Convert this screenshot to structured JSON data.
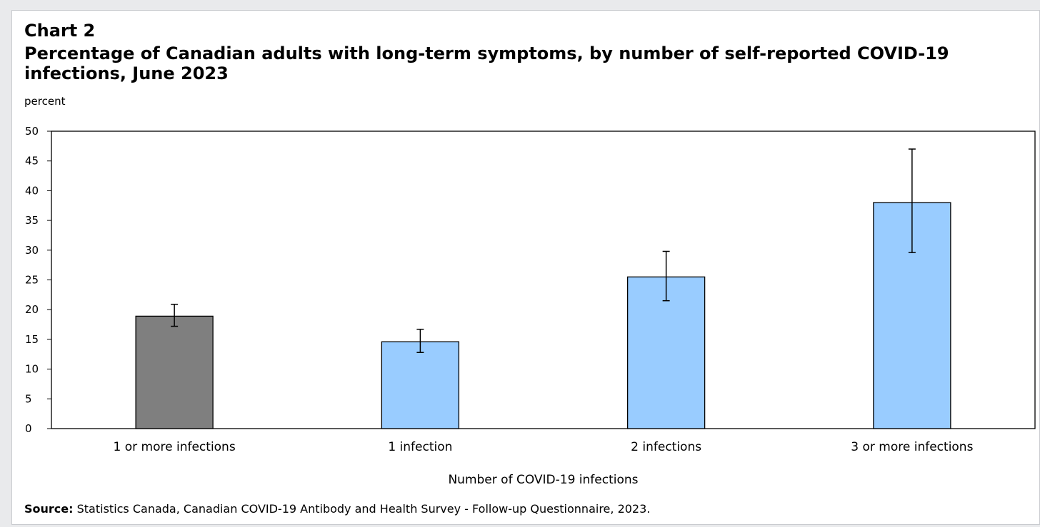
{
  "chart_label": "Chart 2",
  "title": "Percentage of Canadian adults with long-term symptoms, by number of self-reported COVID-19 infections, June 2023",
  "source_label": "Source:",
  "source_text": "Statistics Canada, Canadian COVID-19 Antibody and Health Survey - Follow-up Questionnaire, 2023.",
  "colors": {
    "highlight_bar": "#7f7f7f",
    "bar": "#99ccff",
    "axis": "#000000"
  },
  "chart_data": {
    "type": "bar",
    "ylabel": "percent",
    "xlabel": "Number of COVID-19 infections",
    "ylim": [
      0,
      50
    ],
    "yticks": [
      0,
      5,
      10,
      15,
      20,
      25,
      30,
      35,
      40,
      45,
      50
    ],
    "categories": [
      "1 or more infections",
      "1 infection",
      "2 infections",
      "3 or more infections"
    ],
    "values": [
      18.9,
      14.6,
      25.5,
      38.0
    ],
    "error_low": [
      17.2,
      12.8,
      21.5,
      29.6
    ],
    "error_high": [
      20.9,
      16.7,
      29.8,
      47.0
    ],
    "grid": false
  }
}
